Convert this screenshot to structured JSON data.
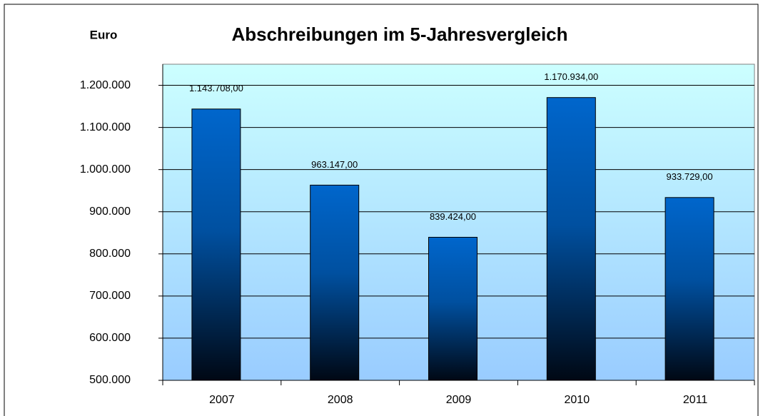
{
  "chart_data": {
    "type": "bar",
    "title": "Abschreibungen im 5-Jahresvergleich",
    "y_label": "Euro",
    "categories": [
      "2007",
      "2008",
      "2009",
      "2010",
      "2011"
    ],
    "values": [
      1143708,
      963147,
      839424,
      1170934,
      933729
    ],
    "value_labels": [
      "1.143.708,00",
      "963.147,00",
      "839.424,00",
      "1.170.934,00",
      "933.729,00"
    ],
    "color": "#0066cc",
    "ylim": [
      500000,
      1250000
    ],
    "yticks": [
      {
        "value": 500000,
        "label": "500.000"
      },
      {
        "value": 600000,
        "label": "600.000"
      },
      {
        "value": 700000,
        "label": "700.000"
      },
      {
        "value": 800000,
        "label": "800.000"
      },
      {
        "value": 900000,
        "label": "900.000"
      },
      {
        "value": 1000000,
        "label": "1.000.000"
      },
      {
        "value": 1100000,
        "label": "1.100.000"
      },
      {
        "value": 1200000,
        "label": "1.200.000"
      }
    ],
    "grid": true
  }
}
